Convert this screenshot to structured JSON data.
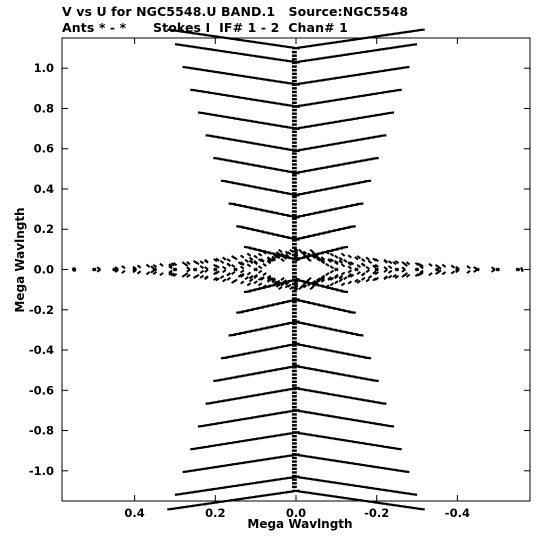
{
  "chart_data": {
    "type": "scatter",
    "title": "V vs U for NGC5548.U BAND.1   Source:NGC5548",
    "subtitle": "Ants * - *      Stokes I  IF# 1 - 2  Chan# 1",
    "xlabel": "Mega Wavlngth",
    "ylabel": "Mega Wavlngth",
    "xlim": [
      0.58,
      -0.58
    ],
    "ylim": [
      -1.15,
      1.15
    ],
    "x_reversed": true,
    "x_ticks": [
      0.4,
      0.2,
      0.0,
      -0.2,
      -0.4
    ],
    "x_tick_labels": [
      "0.4",
      "0.2",
      "0.0",
      "-0.2",
      "-0.4"
    ],
    "y_ticks": [
      1.0,
      0.8,
      0.6,
      0.4,
      0.2,
      0.0,
      -0.2,
      -0.4,
      -0.6,
      -0.8,
      -1.0
    ],
    "y_tick_labels": [
      "1.0",
      "0.8",
      "0.6",
      "0.4",
      "0.2",
      "0.0",
      "-0.2",
      "-0.4",
      "-0.6",
      "-0.8",
      "-1.0"
    ],
    "grid": false,
    "marker_color": "#000000",
    "series": [
      {
        "description_points": "UV coverage tracks: chevron arms of a snapshot north-south array plus two crossing sets of arcs near v=0",
        "chevrons_v": [
          0.05,
          0.15,
          0.26,
          0.37,
          0.48,
          0.59,
          0.7,
          0.81,
          0.92,
          1.03,
          1.1
        ],
        "arc_apex_u": [
          0.55,
          0.5,
          0.45,
          0.4,
          0.35,
          0.3,
          0.25,
          0.2,
          0.15,
          0.1
        ]
      }
    ]
  }
}
